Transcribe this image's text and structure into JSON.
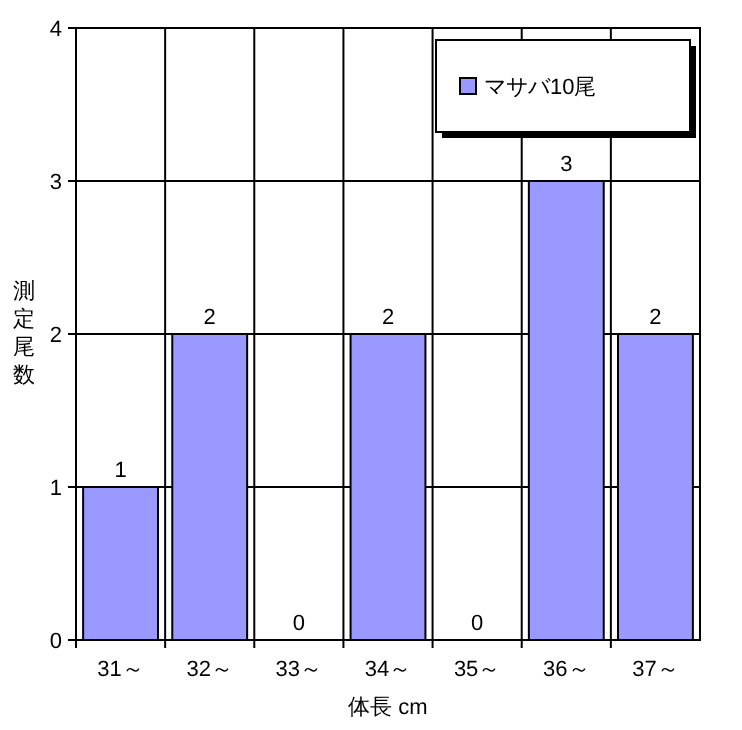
{
  "chart_data": {
    "type": "bar",
    "xlabel": "体長 cm",
    "ylabel": "測定尾数",
    "categories": [
      "31～",
      "32～",
      "33～",
      "34～",
      "35～",
      "36～",
      "37～"
    ],
    "series": [
      {
        "name": "マサバ10尾",
        "color": "#9999ff",
        "values": [
          1,
          2,
          0,
          2,
          0,
          3,
          2
        ]
      }
    ],
    "ylim": [
      0,
      4
    ],
    "yticks": [
      0,
      1,
      2,
      3,
      4
    ],
    "grid": true,
    "legend": "top right",
    "data_labels": true
  }
}
